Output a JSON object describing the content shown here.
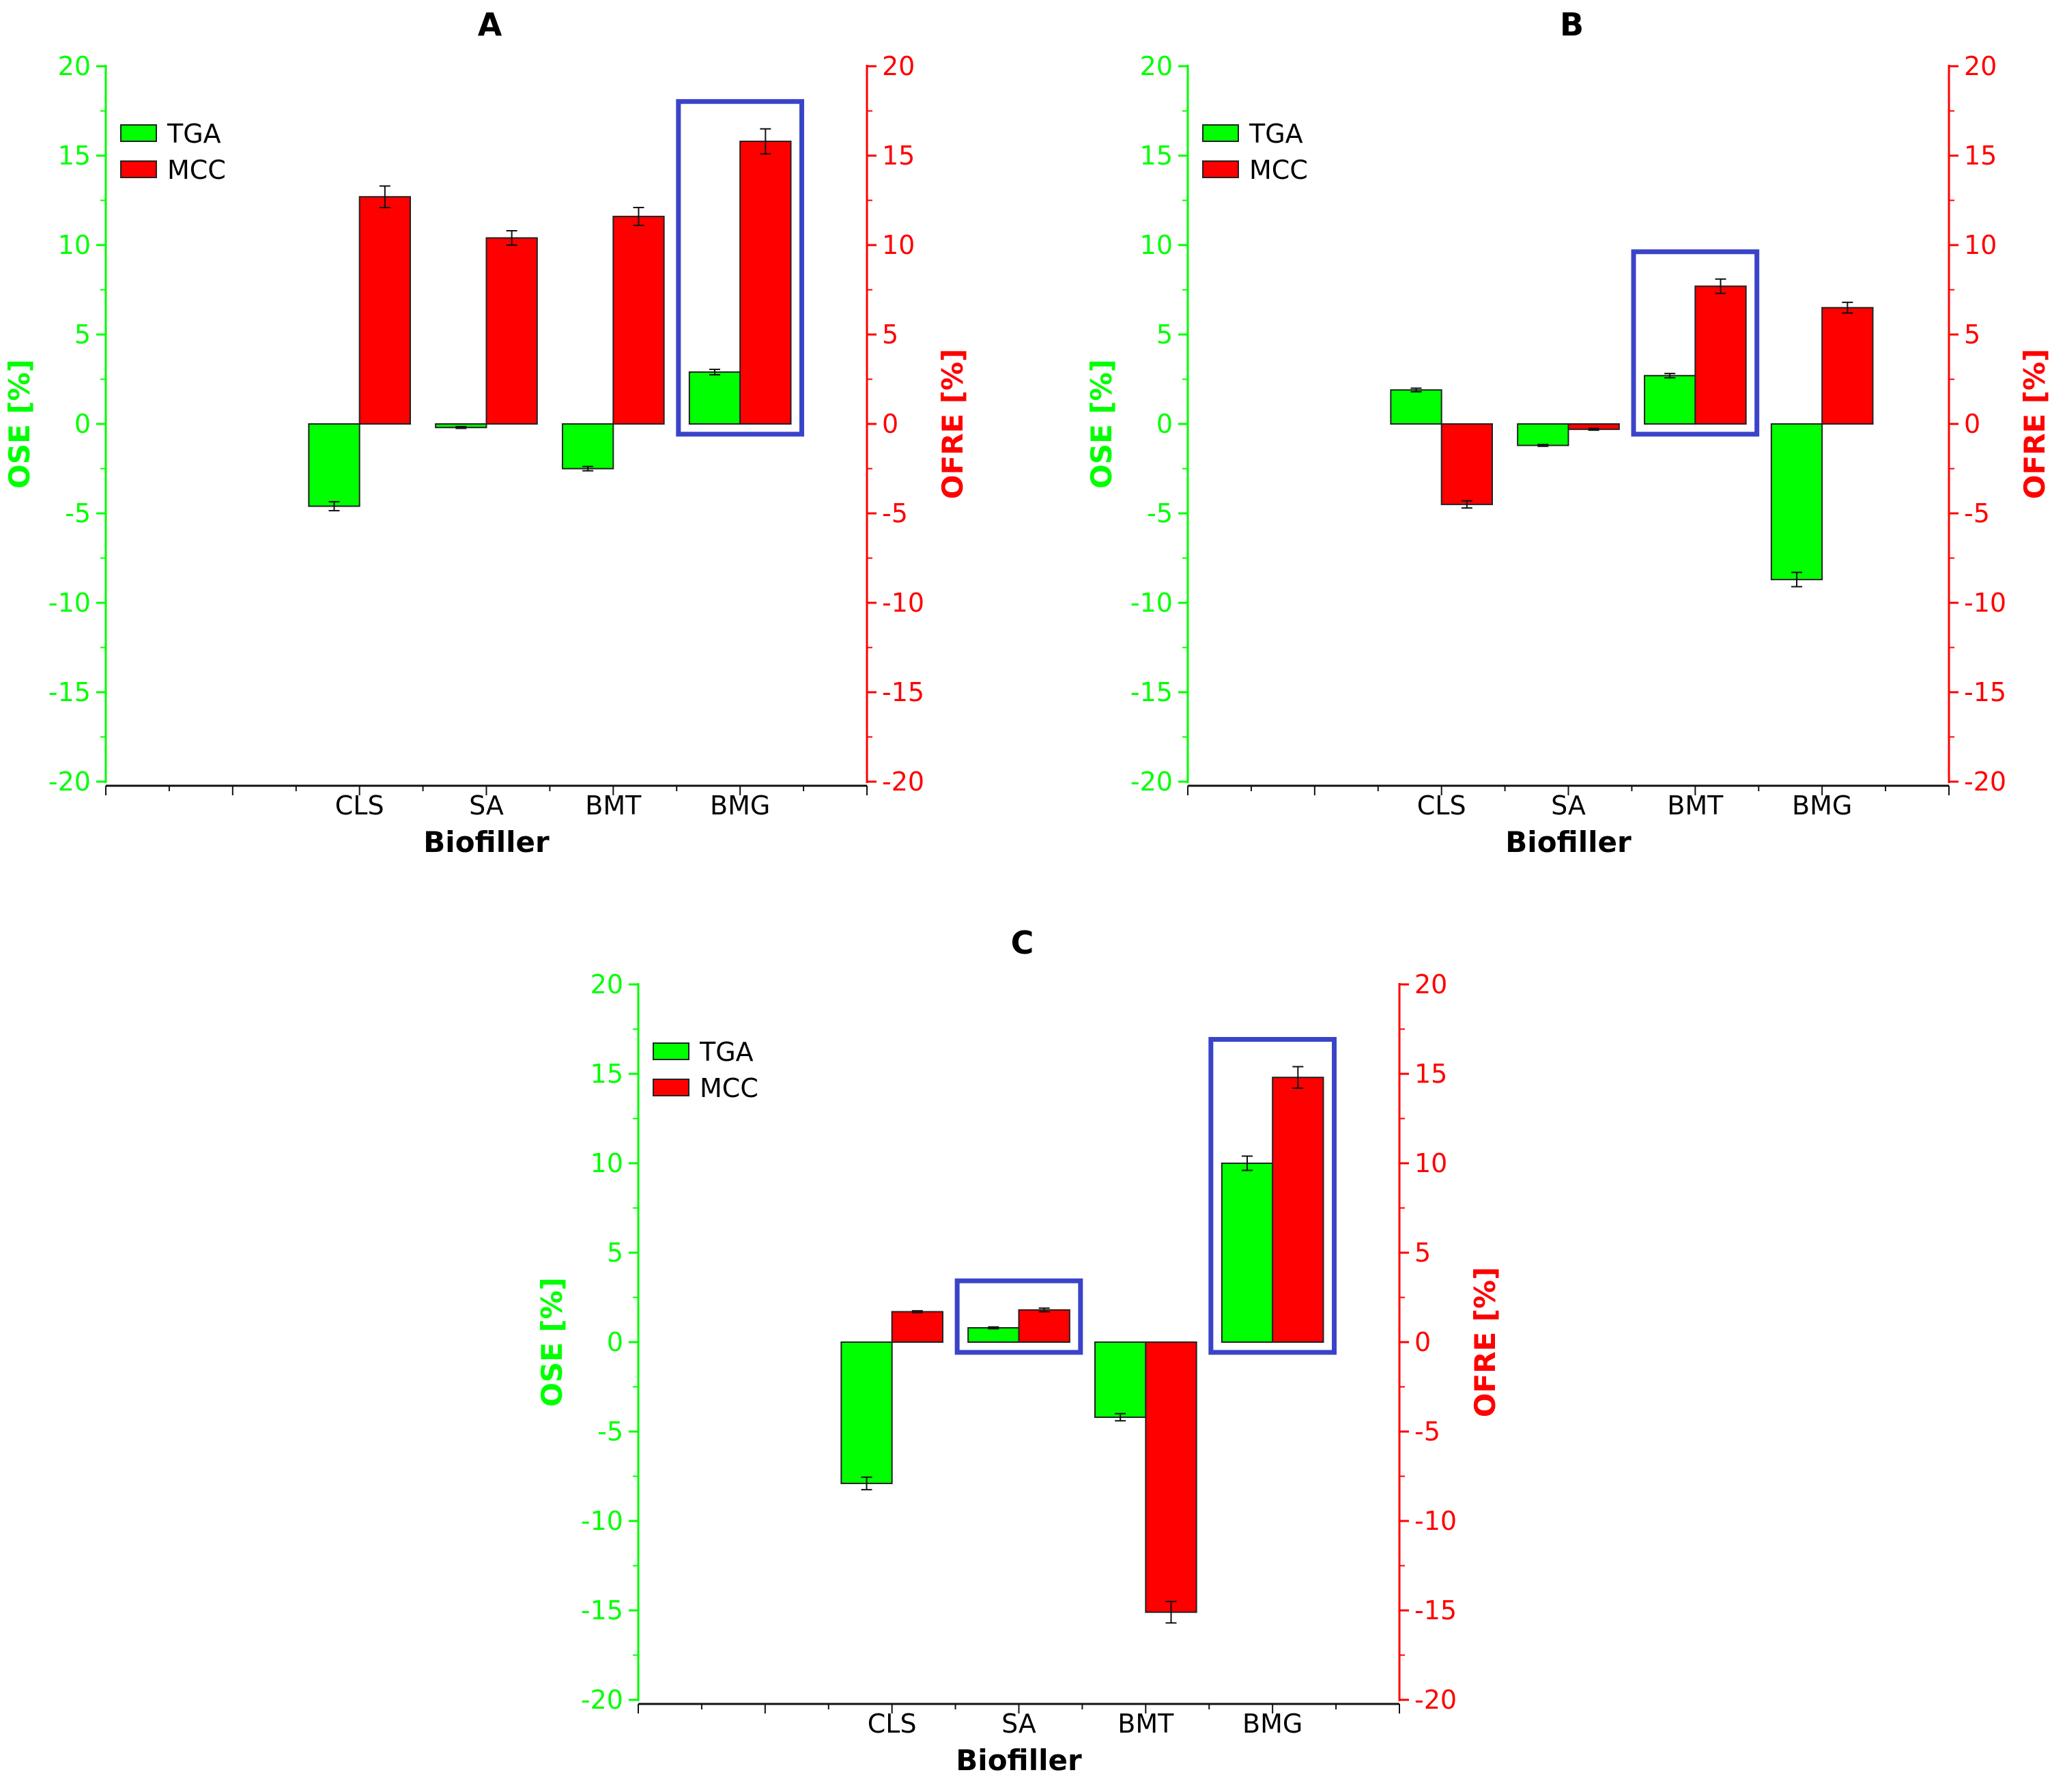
{
  "colors": {
    "tga": "#00ff00",
    "mcc": "#ff0000",
    "left_axis": "#00ff00",
    "right_axis": "#ff0000",
    "highlight": "#3a44c8",
    "bar_outline": "#222222"
  },
  "chart_data": [
    {
      "type": "bar",
      "title": "A",
      "xlabel": "Biofiller",
      "ylabel": "OSE [%]",
      "ylabel_right": "OFRE [%]",
      "ylim": [
        -20,
        20
      ],
      "yticks": [
        20,
        15,
        10,
        5,
        0,
        -5,
        -10,
        -15,
        -20
      ],
      "categories": [
        "CLS",
        "SA",
        "BMT",
        "BMG"
      ],
      "legend": [
        "TGA",
        "MCC"
      ],
      "series": [
        {
          "name": "TGA",
          "axis": "left",
          "values": [
            -4.6,
            -0.2,
            -2.5,
            2.9
          ],
          "errors": [
            0.25,
            0.05,
            0.12,
            0.15
          ]
        },
        {
          "name": "MCC",
          "axis": "right",
          "values": [
            12.7,
            10.4,
            11.6,
            15.8
          ],
          "errors": [
            0.6,
            0.4,
            0.5,
            0.7
          ]
        }
      ],
      "highlight_categories": [
        "BMG"
      ]
    },
    {
      "type": "bar",
      "title": "B",
      "xlabel": "Biofiller",
      "ylabel": "OSE [%]",
      "ylabel_right": "OFRE [%]",
      "ylim": [
        -20,
        20
      ],
      "yticks": [
        20,
        15,
        10,
        5,
        0,
        -5,
        -10,
        -15,
        -20
      ],
      "categories": [
        "CLS",
        "SA",
        "BMT",
        "BMG"
      ],
      "legend": [
        "TGA",
        "MCC"
      ],
      "series": [
        {
          "name": "TGA",
          "axis": "left",
          "values": [
            1.9,
            -1.2,
            2.7,
            -8.7
          ],
          "errors": [
            0.1,
            0.05,
            0.12,
            0.4
          ]
        },
        {
          "name": "MCC",
          "axis": "right",
          "values": [
            -4.5,
            -0.3,
            7.7,
            6.5
          ],
          "errors": [
            0.2,
            0.05,
            0.4,
            0.3
          ]
        }
      ],
      "highlight_categories": [
        "BMT"
      ]
    },
    {
      "type": "bar",
      "title": "C",
      "xlabel": "Biofiller",
      "ylabel": "OSE [%]",
      "ylabel_right": "OFRE [%]",
      "ylim": [
        -20,
        20
      ],
      "yticks": [
        20,
        15,
        10,
        5,
        0,
        -5,
        -10,
        -15,
        -20
      ],
      "categories": [
        "CLS",
        "SA",
        "BMT",
        "BMG"
      ],
      "legend": [
        "TGA",
        "MCC"
      ],
      "series": [
        {
          "name": "TGA",
          "axis": "left",
          "values": [
            -7.9,
            0.8,
            -4.2,
            10.0
          ],
          "errors": [
            0.35,
            0.05,
            0.2,
            0.4
          ]
        },
        {
          "name": "MCC",
          "axis": "right",
          "values": [
            1.7,
            1.8,
            -15.1,
            14.8
          ],
          "errors": [
            0.05,
            0.1,
            0.6,
            0.6
          ]
        }
      ],
      "highlight_categories": [
        "SA",
        "BMG"
      ]
    }
  ]
}
